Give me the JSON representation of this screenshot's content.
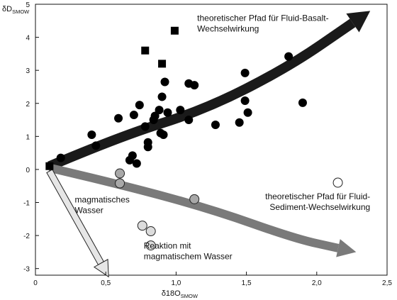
{
  "chart_data": {
    "type": "scatter",
    "xlabel": "δ18O",
    "xlabel_sub": "SMOW",
    "ylabel": "δD",
    "ylabel_sub": "SMOW",
    "xlim": [
      0,
      2.5
    ],
    "ylim": [
      -3.2,
      5
    ],
    "x_ticks": [
      0,
      0.5,
      1,
      1.5,
      2,
      2.5
    ],
    "x_tick_labels": [
      "0",
      "0,5",
      "1,0",
      "1,5",
      "2,0",
      "2,5"
    ],
    "y_ticks": [
      -3,
      -2,
      -1,
      0,
      1,
      2,
      3,
      4,
      5
    ],
    "y_tick_labels": [
      "-3",
      "-2",
      "-1",
      "0",
      "1",
      "2",
      "3",
      "4",
      "5"
    ],
    "grid": false,
    "series": [
      {
        "marker": "filled-square",
        "color": "#000000",
        "points": [
          [
            0.1,
            0.1
          ],
          [
            0.78,
            3.6
          ],
          [
            0.9,
            3.2
          ],
          [
            0.99,
            4.2
          ]
        ]
      },
      {
        "marker": "filled-circle",
        "color": "#000000",
        "points": [
          [
            0.18,
            0.35
          ],
          [
            0.4,
            1.05
          ],
          [
            0.43,
            0.72
          ],
          [
            0.59,
            1.55
          ],
          [
            0.67,
            0.28
          ],
          [
            0.69,
            0.42
          ],
          [
            0.7,
            1.65
          ],
          [
            0.72,
            0.18
          ],
          [
            0.74,
            1.95
          ],
          [
            0.78,
            1.3
          ],
          [
            0.8,
            0.82
          ],
          [
            0.8,
            0.68
          ],
          [
            0.84,
            1.5
          ],
          [
            0.85,
            1.62
          ],
          [
            0.88,
            1.8
          ],
          [
            0.89,
            1.1
          ],
          [
            0.9,
            2.2
          ],
          [
            0.91,
            1.05
          ],
          [
            0.92,
            2.65
          ],
          [
            0.94,
            1.72
          ],
          [
            1.03,
            1.8
          ],
          [
            1.09,
            1.5
          ],
          [
            1.09,
            2.6
          ],
          [
            1.13,
            2.55
          ],
          [
            1.28,
            1.35
          ],
          [
            1.45,
            1.42
          ],
          [
            1.49,
            2.92
          ],
          [
            1.49,
            2.08
          ],
          [
            1.51,
            1.72
          ],
          [
            1.8,
            3.42
          ],
          [
            1.9,
            2.02
          ]
        ]
      },
      {
        "marker": "grey-circle",
        "color": "#a8a8a8",
        "points": [
          [
            0.6,
            -0.12
          ],
          [
            0.6,
            -0.42
          ],
          [
            1.13,
            -0.9
          ]
        ]
      },
      {
        "marker": "light-grey-circle",
        "color": "#dcdcdc",
        "points": [
          [
            0.76,
            -1.7
          ],
          [
            0.82,
            -1.87
          ],
          [
            0.82,
            -2.3
          ]
        ]
      },
      {
        "marker": "open-circle",
        "color": "#ffffff",
        "points": [
          [
            2.15,
            -0.4
          ]
        ]
      }
    ],
    "arrows": [
      {
        "name": "fluid-basalt-path",
        "color": "#1a1a1a",
        "path": [
          [
            0.1,
            0.1
          ],
          [
            0.6,
            1.0
          ],
          [
            1.2,
            1.8
          ],
          [
            1.8,
            3.1
          ],
          [
            2.38,
            4.8
          ]
        ]
      },
      {
        "name": "fluid-sediment-path",
        "color": "#7a7a7a",
        "path": [
          [
            0.1,
            0.05
          ],
          [
            0.6,
            -0.45
          ],
          [
            1.25,
            -1.2
          ],
          [
            1.85,
            -2.1
          ],
          [
            2.28,
            -2.5
          ]
        ]
      },
      {
        "name": "magmatic-water-path",
        "color": "#e6e6e6",
        "path": [
          [
            0.1,
            -0.05
          ],
          [
            0.52,
            -3.25
          ]
        ]
      }
    ],
    "annotations": [
      {
        "lines": [
          "theoretischer Pfad für Fluid-Basalt-",
          "Wechselwirkung"
        ],
        "x": 1.15,
        "y": 4.5,
        "anchor": "start"
      },
      {
        "lines": [
          "magmatisches",
          "Wasser"
        ],
        "x": 0.28,
        "y": -1.0,
        "anchor": "start"
      },
      {
        "lines": [
          "theoretischer Pfad für Fluid-",
          "Sediment-Wechselwirkung"
        ],
        "x": 2.38,
        "y": -0.9,
        "anchor": "end"
      },
      {
        "lines": [
          "Reaktion mit",
          "magmatischem Wasser"
        ],
        "x": 0.77,
        "y": -2.4,
        "anchor": "start"
      }
    ]
  }
}
